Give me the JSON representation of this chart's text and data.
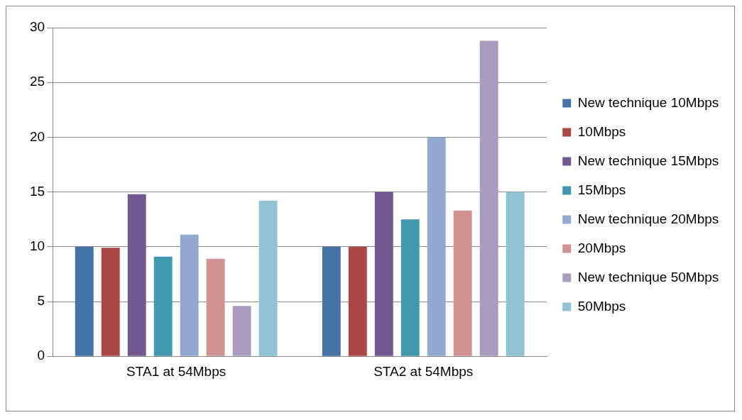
{
  "chart_data": {
    "type": "bar",
    "categories": [
      "STA1 at 54Mbps",
      "STA2 at 54Mbps"
    ],
    "series": [
      {
        "name": "New technique 10Mbps",
        "color": "#4572a7",
        "values": [
          10,
          10
        ]
      },
      {
        "name": "10Mbps",
        "color": "#aa4643",
        "values": [
          9.9,
          10
        ]
      },
      {
        "name": "New technique 15Mbps",
        "color": "#71588f",
        "values": [
          14.8,
          15
        ]
      },
      {
        "name": "15Mbps",
        "color": "#4198af",
        "values": [
          9.1,
          12.5
        ]
      },
      {
        "name": "New technique 20Mbps",
        "color": "#93a9cf",
        "values": [
          11.1,
          20
        ]
      },
      {
        "name": "20Mbps",
        "color": "#d19392",
        "values": [
          8.9,
          13.3
        ]
      },
      {
        "name": "New technique 50Mbps",
        "color": "#a99bbd",
        "values": [
          4.6,
          28.8
        ]
      },
      {
        "name": "50Mbps",
        "color": "#92c3d5",
        "values": [
          14.2,
          15
        ]
      }
    ],
    "ylim": [
      0,
      30
    ],
    "yticks": [
      0,
      5,
      10,
      15,
      20,
      25,
      30
    ],
    "grid": "y",
    "legend": "right"
  }
}
